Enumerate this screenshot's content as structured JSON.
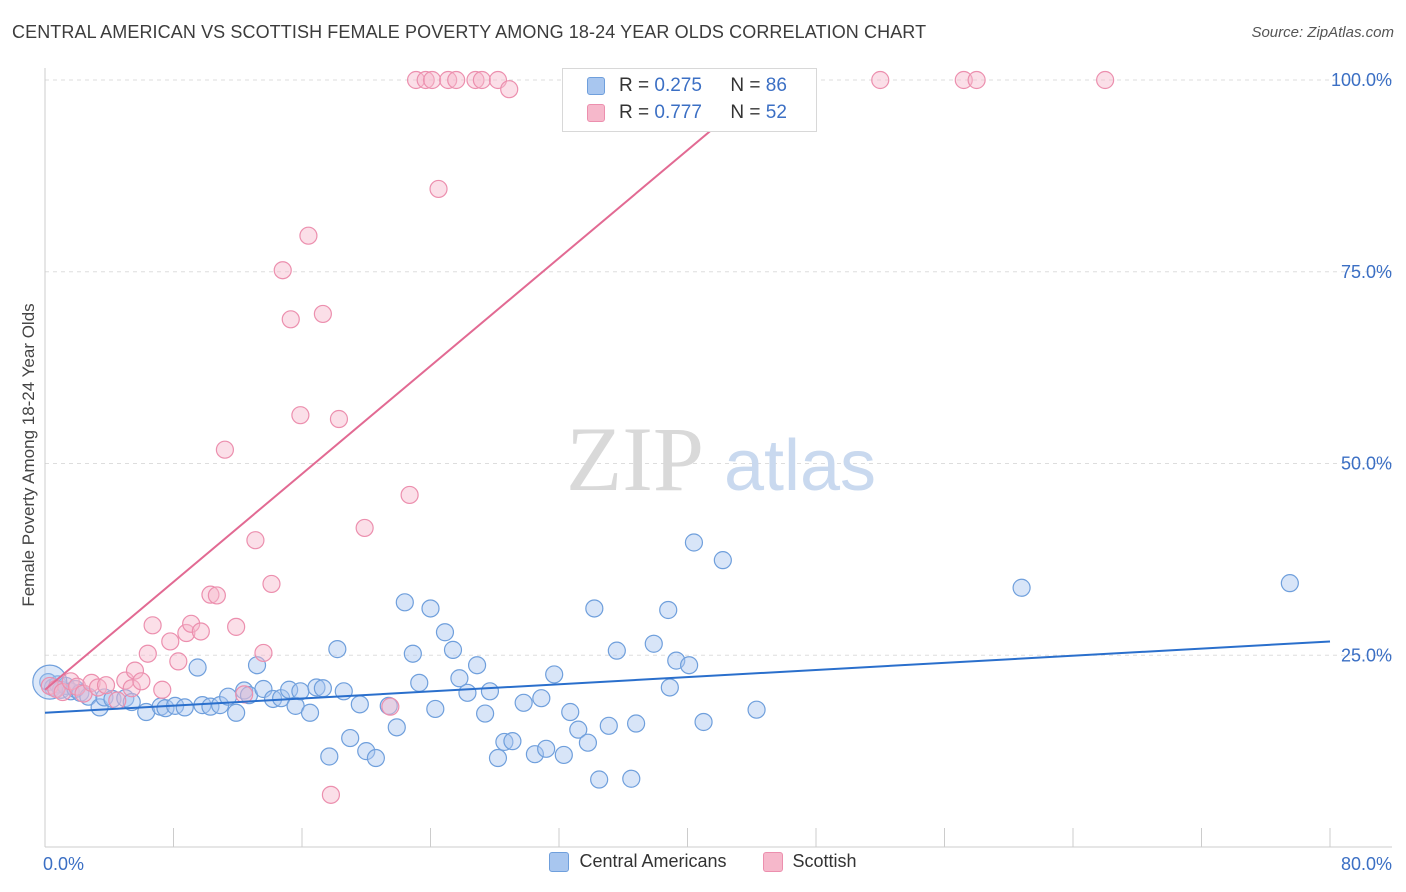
{
  "header": {
    "title": "CENTRAL AMERICAN VS SCOTTISH FEMALE POVERTY AMONG 18-24 YEAR OLDS CORRELATION CHART",
    "source": "Source: ZipAtlas.com"
  },
  "watermark": {
    "zip": "ZIP",
    "atlas": "atlas"
  },
  "legend": {
    "rows": [
      {
        "r_label": "R = ",
        "r_value": "0.275",
        "n_label": "N = ",
        "n_value": "86"
      },
      {
        "r_label": "R = ",
        "r_value": "0.777",
        "n_label": "N = ",
        "n_value": "52"
      }
    ],
    "bottom": [
      "Central Americans",
      "Scottish"
    ]
  },
  "colors": {
    "blue_fill": "#a8c6ef",
    "blue_stroke": "#6f9fdc",
    "blue_line": "#2a6fcc",
    "pink_fill": "#f6b8cb",
    "pink_stroke": "#ec8fae",
    "pink_line": "#e26a93",
    "tick_text": "#3b6fc4",
    "grid": "#dddddd"
  },
  "chart_data": {
    "type": "scatter",
    "title": "CENTRAL AMERICAN VS SCOTTISH FEMALE POVERTY AMONG 18-24 YEAR OLDS CORRELATION CHART",
    "xlabel": "",
    "ylabel": "Female Poverty Among 18-24 Year Olds",
    "xlim": [
      0,
      80
    ],
    "ylim": [
      0,
      100
    ],
    "x_tick_labels": [
      "0.0%",
      "80.0%"
    ],
    "y_ticks": [
      {
        "value": 25,
        "label": "25.0%"
      },
      {
        "value": 50,
        "label": "50.0%"
      },
      {
        "value": 75,
        "label": "75.0%"
      },
      {
        "value": 100,
        "label": "100.0%"
      }
    ],
    "grid": true,
    "legend_position": "top-center",
    "series": [
      {
        "name": "Central Americans",
        "color": "#6f9fdc",
        "trend": {
          "x0": 0,
          "y0": 17.5,
          "x1": 80,
          "y1": 26.8
        },
        "points": [
          [
            0.2,
            21.5
          ],
          [
            0.5,
            20.8
          ],
          [
            0.8,
            21.2
          ],
          [
            1.0,
            20.5
          ],
          [
            1.3,
            21.0
          ],
          [
            1.6,
            20.3
          ],
          [
            1.9,
            20.6
          ],
          [
            2.2,
            20.1
          ],
          [
            2.7,
            19.6
          ],
          [
            3.4,
            18.2
          ],
          [
            3.7,
            19.5
          ],
          [
            4.2,
            19.3
          ],
          [
            5.0,
            19.4
          ],
          [
            5.4,
            18.9
          ],
          [
            6.3,
            17.6
          ],
          [
            7.2,
            18.3
          ],
          [
            7.5,
            18.1
          ],
          [
            8.1,
            18.4
          ],
          [
            8.7,
            18.2
          ],
          [
            9.5,
            23.4
          ],
          [
            9.8,
            18.5
          ],
          [
            10.3,
            18.3
          ],
          [
            10.9,
            18.5
          ],
          [
            11.4,
            19.6
          ],
          [
            11.9,
            17.5
          ],
          [
            12.4,
            20.4
          ],
          [
            12.7,
            19.8
          ],
          [
            13.2,
            23.7
          ],
          [
            13.6,
            20.6
          ],
          [
            14.2,
            19.3
          ],
          [
            14.7,
            19.4
          ],
          [
            15.2,
            20.5
          ],
          [
            15.6,
            18.4
          ],
          [
            15.9,
            20.3
          ],
          [
            16.5,
            17.5
          ],
          [
            16.9,
            20.8
          ],
          [
            17.3,
            20.7
          ],
          [
            17.7,
            11.8
          ],
          [
            18.2,
            25.8
          ],
          [
            18.6,
            20.3
          ],
          [
            19.0,
            14.2
          ],
          [
            19.6,
            18.6
          ],
          [
            20.0,
            12.5
          ],
          [
            20.6,
            11.6
          ],
          [
            21.4,
            18.4
          ],
          [
            21.9,
            15.6
          ],
          [
            22.4,
            31.9
          ],
          [
            22.9,
            25.2
          ],
          [
            23.3,
            21.4
          ],
          [
            24.0,
            31.1
          ],
          [
            24.3,
            18.0
          ],
          [
            24.9,
            28.0
          ],
          [
            25.4,
            25.7
          ],
          [
            25.8,
            22.0
          ],
          [
            26.3,
            20.1
          ],
          [
            26.9,
            23.7
          ],
          [
            27.4,
            17.4
          ],
          [
            27.7,
            20.3
          ],
          [
            28.2,
            11.6
          ],
          [
            28.6,
            13.7
          ],
          [
            29.1,
            13.8
          ],
          [
            29.8,
            18.8
          ],
          [
            30.5,
            12.1
          ],
          [
            30.9,
            19.4
          ],
          [
            31.2,
            12.8
          ],
          [
            31.7,
            22.5
          ],
          [
            32.3,
            12.0
          ],
          [
            32.7,
            17.6
          ],
          [
            33.2,
            15.3
          ],
          [
            33.8,
            13.6
          ],
          [
            34.2,
            31.1
          ],
          [
            34.5,
            8.8
          ],
          [
            35.1,
            15.8
          ],
          [
            35.6,
            25.6
          ],
          [
            36.5,
            8.9
          ],
          [
            36.8,
            16.1
          ],
          [
            37.9,
            26.5
          ],
          [
            38.8,
            30.9
          ],
          [
            38.9,
            20.8
          ],
          [
            39.3,
            24.3
          ],
          [
            40.1,
            23.7
          ],
          [
            40.4,
            39.7
          ],
          [
            41.0,
            16.3
          ],
          [
            42.2,
            37.4
          ],
          [
            44.3,
            17.9
          ],
          [
            60.8,
            33.8
          ],
          [
            77.5,
            34.4
          ]
        ]
      },
      {
        "name": "Scottish",
        "color": "#ec8fae",
        "trend": {
          "x0": 0,
          "y0": 20.5,
          "x1": 45.2,
          "y1": 100
        },
        "points": [
          [
            0.3,
            21.0
          ],
          [
            0.7,
            20.6
          ],
          [
            1.1,
            20.2
          ],
          [
            1.6,
            21.6
          ],
          [
            2.0,
            20.9
          ],
          [
            2.4,
            20.0
          ],
          [
            2.9,
            21.4
          ],
          [
            3.3,
            20.8
          ],
          [
            3.8,
            21.1
          ],
          [
            4.5,
            19.1
          ],
          [
            5.0,
            21.7
          ],
          [
            5.4,
            20.7
          ],
          [
            5.6,
            23.0
          ],
          [
            6.0,
            21.6
          ],
          [
            6.4,
            25.2
          ],
          [
            6.7,
            28.9
          ],
          [
            7.3,
            20.5
          ],
          [
            7.8,
            26.8
          ],
          [
            8.3,
            24.2
          ],
          [
            8.8,
            27.9
          ],
          [
            9.1,
            29.1
          ],
          [
            9.7,
            28.1
          ],
          [
            10.3,
            32.9
          ],
          [
            10.7,
            32.8
          ],
          [
            11.2,
            51.8
          ],
          [
            11.9,
            28.7
          ],
          [
            12.4,
            19.9
          ],
          [
            13.1,
            40.0
          ],
          [
            13.6,
            25.3
          ],
          [
            14.1,
            34.3
          ],
          [
            14.8,
            75.2
          ],
          [
            15.3,
            68.8
          ],
          [
            15.9,
            56.3
          ],
          [
            16.4,
            79.7
          ],
          [
            17.3,
            69.5
          ],
          [
            17.8,
            6.8
          ],
          [
            18.3,
            55.8
          ],
          [
            19.9,
            41.6
          ],
          [
            21.5,
            18.3
          ],
          [
            22.7,
            45.9
          ],
          [
            23.1,
            100.0
          ],
          [
            23.7,
            100.0
          ],
          [
            24.1,
            100.0
          ],
          [
            24.5,
            85.8
          ],
          [
            25.1,
            100.0
          ],
          [
            25.6,
            100.0
          ],
          [
            26.8,
            100.0
          ],
          [
            27.2,
            100.0
          ],
          [
            28.2,
            100.0
          ],
          [
            28.9,
            98.8
          ],
          [
            52.0,
            100.0
          ],
          [
            57.2,
            100.0
          ],
          [
            58.0,
            100.0
          ],
          [
            66.0,
            100.0
          ]
        ]
      }
    ]
  }
}
